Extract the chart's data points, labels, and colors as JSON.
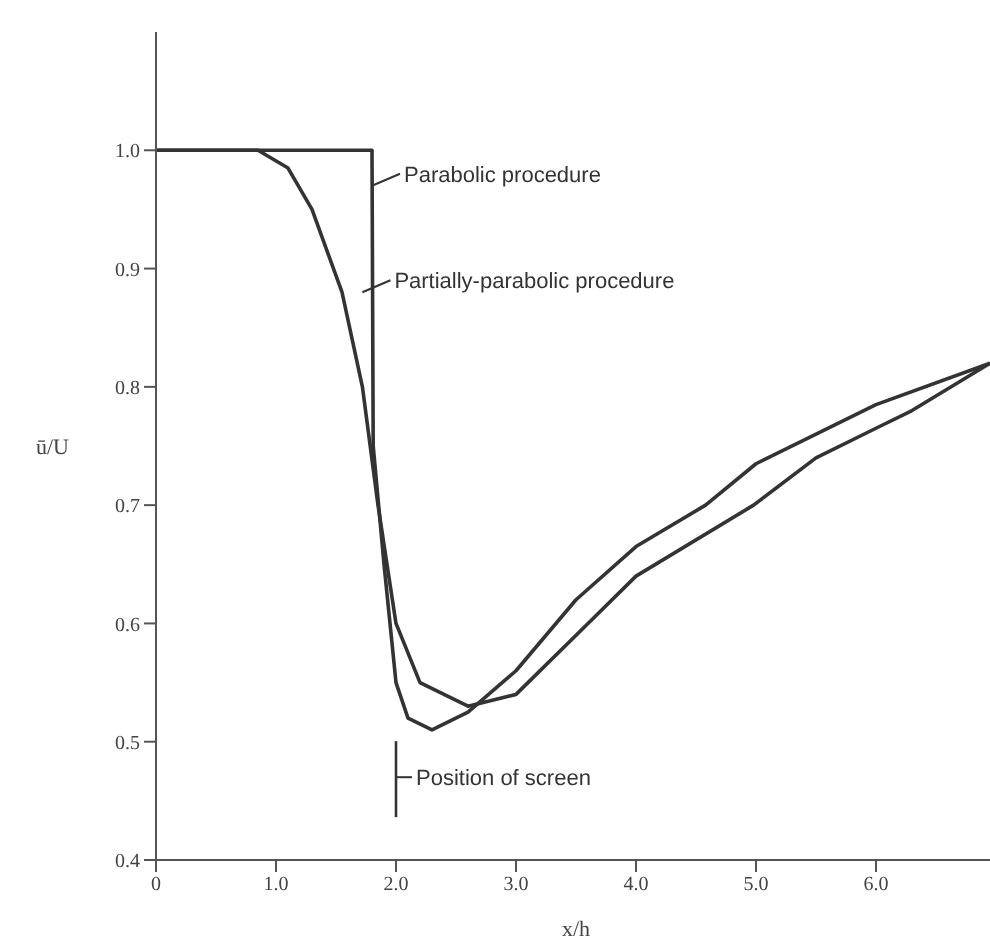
{
  "chart_data": {
    "type": "line",
    "xlabel": "x/h",
    "ylabel": "ū/U",
    "xlim": [
      0,
      7
    ],
    "ylim": [
      0.4,
      1.1
    ],
    "xticks": [
      0,
      {
        "value": 1,
        "label": "1.0"
      },
      {
        "value": 2,
        "label": "2.0"
      },
      {
        "value": 3,
        "label": "3.0"
      },
      {
        "value": 4,
        "label": "4.0"
      },
      {
        "value": 5,
        "label": "5.0"
      },
      {
        "value": 6,
        "label": "6.0"
      }
    ],
    "yticks": [
      0.4,
      0.5,
      0.6,
      0.7,
      0.8,
      0.9,
      {
        "value": 1,
        "label": "1.0"
      }
    ],
    "grid": false,
    "marker": "none",
    "line_style": "solid",
    "series": [
      {
        "color": "#333333",
        "x": [
          0,
          1.8,
          1.81,
          1.9,
          2.0,
          2.1,
          2.3,
          2.6,
          3.0,
          3.5,
          4.0,
          4.58,
          5.0,
          6.0,
          6.95
        ],
        "values": [
          1,
          1,
          0.75,
          0.65,
          0.55,
          0.52,
          0.51,
          0.525,
          0.56,
          0.62,
          0.665,
          0.7,
          0.735,
          0.785,
          0.82
        ]
      },
      {
        "color": "#333333",
        "x": [
          0,
          0.85,
          1.1,
          1.3,
          1.55,
          1.72,
          1.85,
          2.0,
          2.2,
          2.6,
          3.0,
          3.6,
          4.0,
          4.98,
          5.5,
          6.0,
          6.3,
          6.95
        ],
        "values": [
          1,
          1,
          0.985,
          0.95,
          0.88,
          0.8,
          0.7,
          0.6,
          0.55,
          0.53,
          0.54,
          0.6,
          0.64,
          0.7,
          0.74,
          0.765,
          0.78,
          0.82
        ]
      }
    ],
    "annotations": [
      {
        "text": "Parabolic procedure",
        "x": 1.8,
        "y": 0.97
      },
      {
        "text": "Partially-parabolic procedure",
        "x": 1.72,
        "y": 0.88
      },
      "Position of screen"
    ]
  }
}
